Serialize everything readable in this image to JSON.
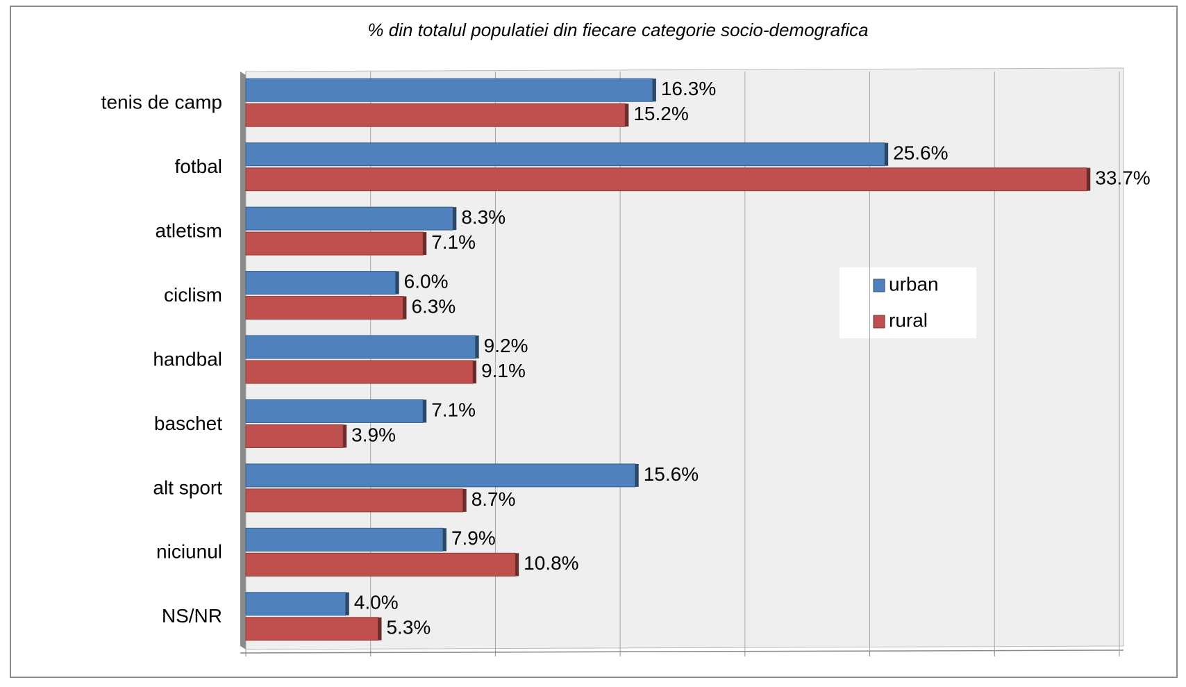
{
  "chart_data": {
    "type": "bar",
    "orientation": "horizontal",
    "title": "% din totalul populatiei din fiecare categorie socio-demografica",
    "categories": [
      "tenis de camp",
      "fotbal",
      "atletism",
      "ciclism",
      "handbal",
      "baschet",
      "alt sport",
      "niciunul",
      "NS/NR"
    ],
    "series": [
      {
        "name": "urban",
        "color": "#4f81bd",
        "values": [
          16.3,
          25.6,
          8.3,
          6.0,
          9.2,
          7.1,
          15.6,
          7.9,
          4.0
        ],
        "value_labels": [
          "16.3%",
          "25.6%",
          "8.3%",
          "6.0%",
          "9.2%",
          "7.1%",
          "15.6%",
          "7.9%",
          "4.0%"
        ]
      },
      {
        "name": "rural",
        "color": "#c0504d",
        "values": [
          15.2,
          33.7,
          7.1,
          6.3,
          9.1,
          3.9,
          8.7,
          10.8,
          5.3
        ],
        "value_labels": [
          "15.2%",
          "33.7%",
          "7.1%",
          "6.3%",
          "9.1%",
          "3.9%",
          "8.7%",
          "10.8%",
          "5.3%"
        ]
      }
    ],
    "xlim": [
      0,
      35
    ],
    "xticks": [
      0,
      5,
      10,
      15,
      20,
      25,
      30,
      35
    ],
    "grid": true,
    "legend": "right"
  }
}
